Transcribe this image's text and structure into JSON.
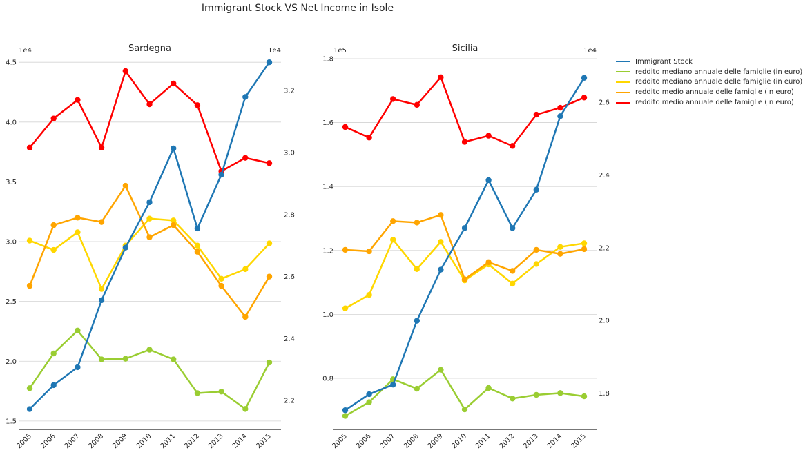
{
  "figure_title": "Immigrant Stock VS Net Income in Isole",
  "legend": [
    {
      "label": "Immigrant Stock",
      "color": "#1f77b4"
    },
    {
      "label": "reddito mediano annuale delle famiglie (in euro)",
      "color": "#9acd32"
    },
    {
      "label": "reddito mediano annuale delle famiglie (in euro)",
      "color": "#ffd700"
    },
    {
      "label": "reddito medio annuale delle famiglie (in euro)",
      "color": "#ffa500"
    },
    {
      "label": "reddito medio annuale delle famiglie (in euro)",
      "color": "#ff0000"
    }
  ],
  "chart_data": [
    {
      "type": "line",
      "title": "Sardegna",
      "x": [
        "2005",
        "2006",
        "2007",
        "2008",
        "2009",
        "2010",
        "2011",
        "2012",
        "2013",
        "2014",
        "2015"
      ],
      "left_axis": {
        "ylim": [
          1.43,
          4.53
        ],
        "ticks": [
          1.5,
          2.0,
          2.5,
          3.0,
          3.5,
          4.0,
          4.5
        ],
        "tick_labels": [
          "1.5",
          "2.0",
          "2.5",
          "3.0",
          "3.5",
          "4.0",
          "4.5"
        ],
        "offset_label": "1e4"
      },
      "right_axis": {
        "ylim": [
          2.107,
          3.303
        ],
        "ticks": [
          2.2,
          2.4,
          2.6,
          2.8,
          3.0,
          3.2
        ],
        "tick_labels": [
          "2.2",
          "2.4",
          "2.6",
          "2.8",
          "3.0",
          "3.2"
        ],
        "offset_label": "1e4"
      },
      "grid": true,
      "series": [
        {
          "name": "Immigrant Stock",
          "axis": "left",
          "color": "#1f77b4",
          "values": [
            1.6,
            1.8,
            1.95,
            2.51,
            2.95,
            3.33,
            3.78,
            3.11,
            3.56,
            4.21,
            4.5
          ]
        },
        {
          "name": "reddito mediano annuale delle famiglie (in euro)",
          "axis": "right",
          "color": "#9acd32",
          "values": [
            2.24,
            2.352,
            2.426,
            2.333,
            2.335,
            2.364,
            2.333,
            2.224,
            2.229,
            2.173,
            2.323
          ]
        },
        {
          "name": "reddito mediano annuale delle famiglie (in euro)",
          "axis": "right",
          "color": "#ffd700",
          "values": [
            2.716,
            2.686,
            2.743,
            2.56,
            2.7,
            2.787,
            2.781,
            2.7,
            2.593,
            2.624,
            2.707
          ]
        },
        {
          "name": "reddito medio annuale delle famiglie (in euro)",
          "axis": "right",
          "color": "#ffa500",
          "values": [
            2.57,
            2.766,
            2.79,
            2.776,
            2.893,
            2.727,
            2.766,
            2.68,
            2.57,
            2.47,
            2.6
          ]
        },
        {
          "name": "reddito medio annuale delle famiglie (in euro)",
          "axis": "right",
          "color": "#ff0000",
          "values": [
            3.016,
            3.11,
            3.17,
            3.016,
            3.263,
            3.156,
            3.223,
            3.153,
            2.94,
            2.983,
            2.966
          ]
        }
      ]
    },
    {
      "type": "line",
      "title": "Sicilia",
      "x": [
        "2005",
        "2006",
        "2007",
        "2008",
        "2009",
        "2010",
        "2011",
        "2012",
        "2013",
        "2014",
        "2015"
      ],
      "left_axis": {
        "ylim": [
          0.64,
          1.8
        ],
        "ticks": [
          0.8,
          1.0,
          1.2,
          1.4,
          1.6,
          1.8
        ],
        "tick_labels": [
          "0.8",
          "1.0",
          "1.2",
          "1.4",
          "1.6",
          "1.8"
        ],
        "offset_label": "1e5"
      },
      "right_axis": {
        "ylim": [
          1.7,
          2.72
        ],
        "ticks": [
          1.8,
          2.0,
          2.2,
          2.4,
          2.6
        ],
        "tick_labels": [
          "1.8",
          "2.0",
          "2.2",
          "2.4",
          "2.6"
        ],
        "offset_label": "1e4"
      },
      "grid": true,
      "series": [
        {
          "name": "Immigrant Stock",
          "axis": "left",
          "color": "#1f77b4",
          "values": [
            0.7,
            0.75,
            0.78,
            0.98,
            1.14,
            1.27,
            1.42,
            1.27,
            1.39,
            1.62,
            1.74
          ]
        },
        {
          "name": "reddito mediano annuale delle famiglie (in euro)",
          "axis": "right",
          "color": "#9acd32",
          "values": [
            1.737,
            1.775,
            1.838,
            1.812,
            1.864,
            1.755,
            1.814,
            1.785,
            1.795,
            1.8,
            1.791
          ]
        },
        {
          "name": "reddito mediano annuale delle famiglie (in euro)",
          "axis": "right",
          "color": "#ffd700",
          "values": [
            2.033,
            2.07,
            2.222,
            2.141,
            2.216,
            2.11,
            2.154,
            2.101,
            2.155,
            2.202,
            2.212
          ]
        },
        {
          "name": "reddito medio annuale delle famiglie (in euro)",
          "axis": "right",
          "color": "#ffa500",
          "values": [
            2.194,
            2.19,
            2.273,
            2.269,
            2.29,
            2.113,
            2.16,
            2.136,
            2.194,
            2.183,
            2.196
          ]
        },
        {
          "name": "reddito medio annuale delle famiglie (in euro)",
          "axis": "right",
          "color": "#ff0000",
          "values": [
            2.532,
            2.503,
            2.609,
            2.593,
            2.669,
            2.491,
            2.508,
            2.48,
            2.566,
            2.585,
            2.613
          ]
        }
      ]
    }
  ]
}
